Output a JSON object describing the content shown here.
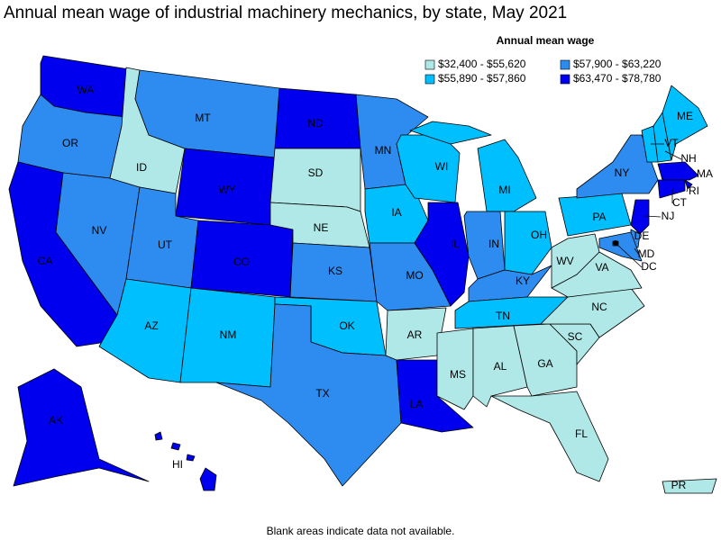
{
  "title": "Annual mean wage of industrial machinery mechanics, by state, May 2021",
  "legend": {
    "title": "Annual mean wage",
    "items": [
      {
        "label": "$32,400 - $55,620",
        "color": "#b0e8e8"
      },
      {
        "label": "$55,890 - $57,860",
        "color": "#00bfff"
      },
      {
        "label": "$57,900 - $63,220",
        "color": "#2e8cf0"
      },
      {
        "label": "$63,470 - $78,780",
        "color": "#0000ee"
      }
    ]
  },
  "states": [
    {
      "abbr": "WA",
      "bin": 3
    },
    {
      "abbr": "OR",
      "bin": 2
    },
    {
      "abbr": "CA",
      "bin": 3
    },
    {
      "abbr": "NV",
      "bin": 2
    },
    {
      "abbr": "ID",
      "bin": 0
    },
    {
      "abbr": "MT",
      "bin": 2
    },
    {
      "abbr": "WY",
      "bin": 3
    },
    {
      "abbr": "UT",
      "bin": 2
    },
    {
      "abbr": "CO",
      "bin": 3
    },
    {
      "abbr": "AZ",
      "bin": 1
    },
    {
      "abbr": "NM",
      "bin": 1
    },
    {
      "abbr": "ND",
      "bin": 3
    },
    {
      "abbr": "SD",
      "bin": 0
    },
    {
      "abbr": "NE",
      "bin": 0
    },
    {
      "abbr": "KS",
      "bin": 2
    },
    {
      "abbr": "OK",
      "bin": 1
    },
    {
      "abbr": "TX",
      "bin": 2
    },
    {
      "abbr": "MN",
      "bin": 2
    },
    {
      "abbr": "IA",
      "bin": 1
    },
    {
      "abbr": "MO",
      "bin": 2
    },
    {
      "abbr": "AR",
      "bin": 0
    },
    {
      "abbr": "LA",
      "bin": 3
    },
    {
      "abbr": "WI",
      "bin": 1
    },
    {
      "abbr": "IL",
      "bin": 3
    },
    {
      "abbr": "MI",
      "bin": 1
    },
    {
      "abbr": "IN",
      "bin": 2
    },
    {
      "abbr": "OH",
      "bin": 1
    },
    {
      "abbr": "KY",
      "bin": 2
    },
    {
      "abbr": "TN",
      "bin": 1
    },
    {
      "abbr": "MS",
      "bin": 0
    },
    {
      "abbr": "AL",
      "bin": 0
    },
    {
      "abbr": "GA",
      "bin": 0
    },
    {
      "abbr": "FL",
      "bin": 0
    },
    {
      "abbr": "SC",
      "bin": 0
    },
    {
      "abbr": "NC",
      "bin": 0
    },
    {
      "abbr": "VA",
      "bin": 0
    },
    {
      "abbr": "WV",
      "bin": 0
    },
    {
      "abbr": "PA",
      "bin": 1
    },
    {
      "abbr": "NY",
      "bin": 2
    },
    {
      "abbr": "VT",
      "bin": 1
    },
    {
      "abbr": "NH",
      "bin": 1
    },
    {
      "abbr": "ME",
      "bin": 1
    },
    {
      "abbr": "MA",
      "bin": 3
    },
    {
      "abbr": "RI",
      "bin": 3
    },
    {
      "abbr": "CT",
      "bin": 3
    },
    {
      "abbr": "NJ",
      "bin": 3
    },
    {
      "abbr": "DE",
      "bin": 2
    },
    {
      "abbr": "MD",
      "bin": 2
    },
    {
      "abbr": "DC",
      "bin": 2
    },
    {
      "abbr": "AK",
      "bin": 3
    },
    {
      "abbr": "HI",
      "bin": 3
    },
    {
      "abbr": "PR",
      "bin": 0
    }
  ],
  "note": "Blank areas indicate data not available."
}
